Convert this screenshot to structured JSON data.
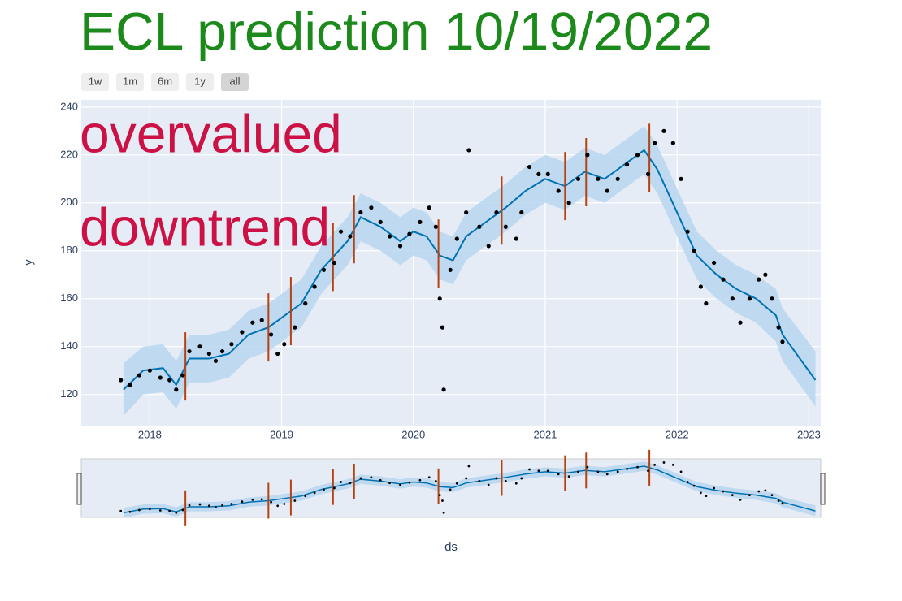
{
  "chart_data": {
    "type": "forecast",
    "title": "ECL prediction 10/19/2022",
    "annotations": [
      "overvalued",
      "downtrend"
    ],
    "range_buttons": [
      "1w",
      "1m",
      "6m",
      "1y",
      "all"
    ],
    "x_label": "ds",
    "y_label": "y",
    "xlim": [
      2017.48,
      2023.09
    ],
    "ylim": [
      107,
      243
    ],
    "xticks": [
      2018,
      2019,
      2020,
      2021,
      2022,
      2023
    ],
    "yticks": [
      120,
      140,
      160,
      180,
      200,
      220,
      240
    ],
    "grid": true,
    "actual": {
      "color": "#000000",
      "x": [
        2017.78,
        2017.85,
        2017.92,
        2018.0,
        2018.08,
        2018.15,
        2018.2,
        2018.25,
        2018.3,
        2018.38,
        2018.45,
        2018.5,
        2018.55,
        2018.62,
        2018.7,
        2018.78,
        2018.85,
        2018.92,
        2018.97,
        2019.02,
        2019.1,
        2019.18,
        2019.25,
        2019.32,
        2019.4,
        2019.45,
        2019.52,
        2019.6,
        2019.68,
        2019.75,
        2019.82,
        2019.9,
        2019.97,
        2020.05,
        2020.12,
        2020.17,
        2020.2,
        2020.22,
        2020.23,
        2020.28,
        2020.33,
        2020.4,
        2020.42,
        2020.5,
        2020.57,
        2020.63,
        2020.7,
        2020.78,
        2020.82,
        2020.88,
        2020.95,
        2021.02,
        2021.1,
        2021.18,
        2021.25,
        2021.32,
        2021.4,
        2021.47,
        2021.55,
        2021.62,
        2021.7,
        2021.78,
        2021.83,
        2021.9,
        2021.97,
        2022.03,
        2022.08,
        2022.13,
        2022.18,
        2022.22,
        2022.28,
        2022.35,
        2022.42,
        2022.48,
        2022.55,
        2022.62,
        2022.67,
        2022.72,
        2022.77,
        2022.8
      ],
      "values": [
        126,
        124,
        128,
        130,
        127,
        126,
        122,
        128,
        138,
        140,
        137,
        134,
        138,
        141,
        146,
        150,
        151,
        145,
        137,
        141,
        148,
        158,
        165,
        172,
        175,
        188,
        186,
        196,
        198,
        192,
        186,
        182,
        187,
        192,
        198,
        190,
        160,
        148,
        122,
        172,
        185,
        196,
        222,
        190,
        182,
        196,
        190,
        185,
        196,
        215,
        212,
        212,
        205,
        200,
        210,
        220,
        210,
        205,
        210,
        216,
        220,
        212,
        225,
        230,
        225,
        210,
        188,
        180,
        165,
        158,
        175,
        168,
        160,
        150,
        160,
        168,
        170,
        160,
        148,
        142
      ]
    },
    "forecast": {
      "color": "#0072b2",
      "band_color": "#b9d6ee",
      "x": [
        2017.8,
        2017.95,
        2018.1,
        2018.2,
        2018.3,
        2018.45,
        2018.6,
        2018.75,
        2018.9,
        2019.0,
        2019.15,
        2019.3,
        2019.4,
        2019.5,
        2019.6,
        2019.75,
        2019.9,
        2020.0,
        2020.1,
        2020.2,
        2020.3,
        2020.4,
        2020.55,
        2020.7,
        2020.85,
        2021.0,
        2021.15,
        2021.3,
        2021.45,
        2021.6,
        2021.75,
        2021.85,
        2022.0,
        2022.15,
        2022.3,
        2022.45,
        2022.6,
        2022.75,
        2022.8,
        2023.05
      ],
      "values": [
        122,
        130,
        131,
        124,
        135,
        135,
        137,
        145,
        148,
        152,
        158,
        172,
        178,
        184,
        194,
        190,
        184,
        188,
        186,
        178,
        176,
        186,
        192,
        198,
        205,
        210,
        207,
        213,
        210,
        216,
        222,
        214,
        196,
        178,
        170,
        164,
        160,
        153,
        145,
        126
      ],
      "lower": [
        111,
        120,
        121,
        114,
        125,
        125,
        127,
        135,
        138,
        142,
        148,
        162,
        168,
        174,
        184,
        180,
        174,
        178,
        176,
        168,
        166,
        176,
        182,
        188,
        195,
        200,
        197,
        203,
        200,
        206,
        212,
        204,
        186,
        168,
        160,
        154,
        150,
        142,
        134,
        115
      ],
      "upper": [
        133,
        140,
        141,
        134,
        145,
        145,
        147,
        155,
        158,
        162,
        168,
        182,
        188,
        194,
        204,
        200,
        194,
        198,
        196,
        188,
        186,
        196,
        202,
        208,
        215,
        220,
        217,
        223,
        220,
        226,
        232,
        224,
        206,
        188,
        180,
        174,
        170,
        164,
        156,
        138
      ]
    },
    "changepoints": {
      "color": "#b5420f",
      "x": [
        2018.27,
        2018.9,
        2019.07,
        2019.39,
        2019.55,
        2020.19,
        2020.67,
        2021.15,
        2021.31,
        2021.79
      ]
    }
  }
}
